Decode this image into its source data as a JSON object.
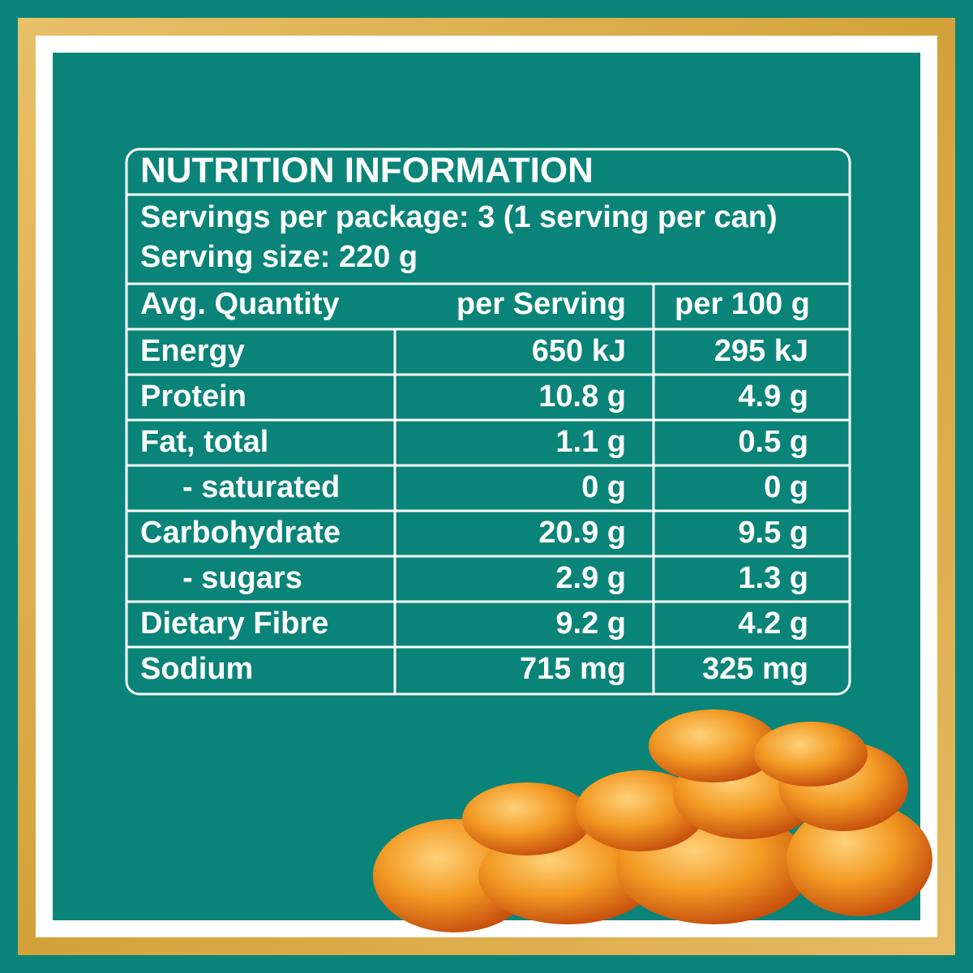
{
  "header": {
    "title": "NUTRITION INFORMATION",
    "servings_per_package": "Servings per package: 3 (1 serving per can)",
    "serving_size": "Serving size: 220 g"
  },
  "table": {
    "columns": [
      "Avg. Quantity",
      "per Serving",
      "per 100 g"
    ],
    "rows": [
      [
        "Energy",
        "650 kJ",
        "295 kJ"
      ],
      [
        "Protein",
        "10.8 g",
        "4.9 g"
      ],
      [
        "Fat, total",
        "1.1 g",
        "0.5 g"
      ],
      [
        "- saturated",
        "0 g",
        "0 g"
      ],
      [
        "Carbohydrate",
        "20.9 g",
        "9.5 g"
      ],
      [
        "- sugars",
        "2.9 g",
        "1.3 g"
      ],
      [
        "Dietary Fibre",
        "9.2 g",
        "4.2 g"
      ],
      [
        "Sodium",
        "715 mg",
        "325 mg"
      ]
    ]
  }
}
